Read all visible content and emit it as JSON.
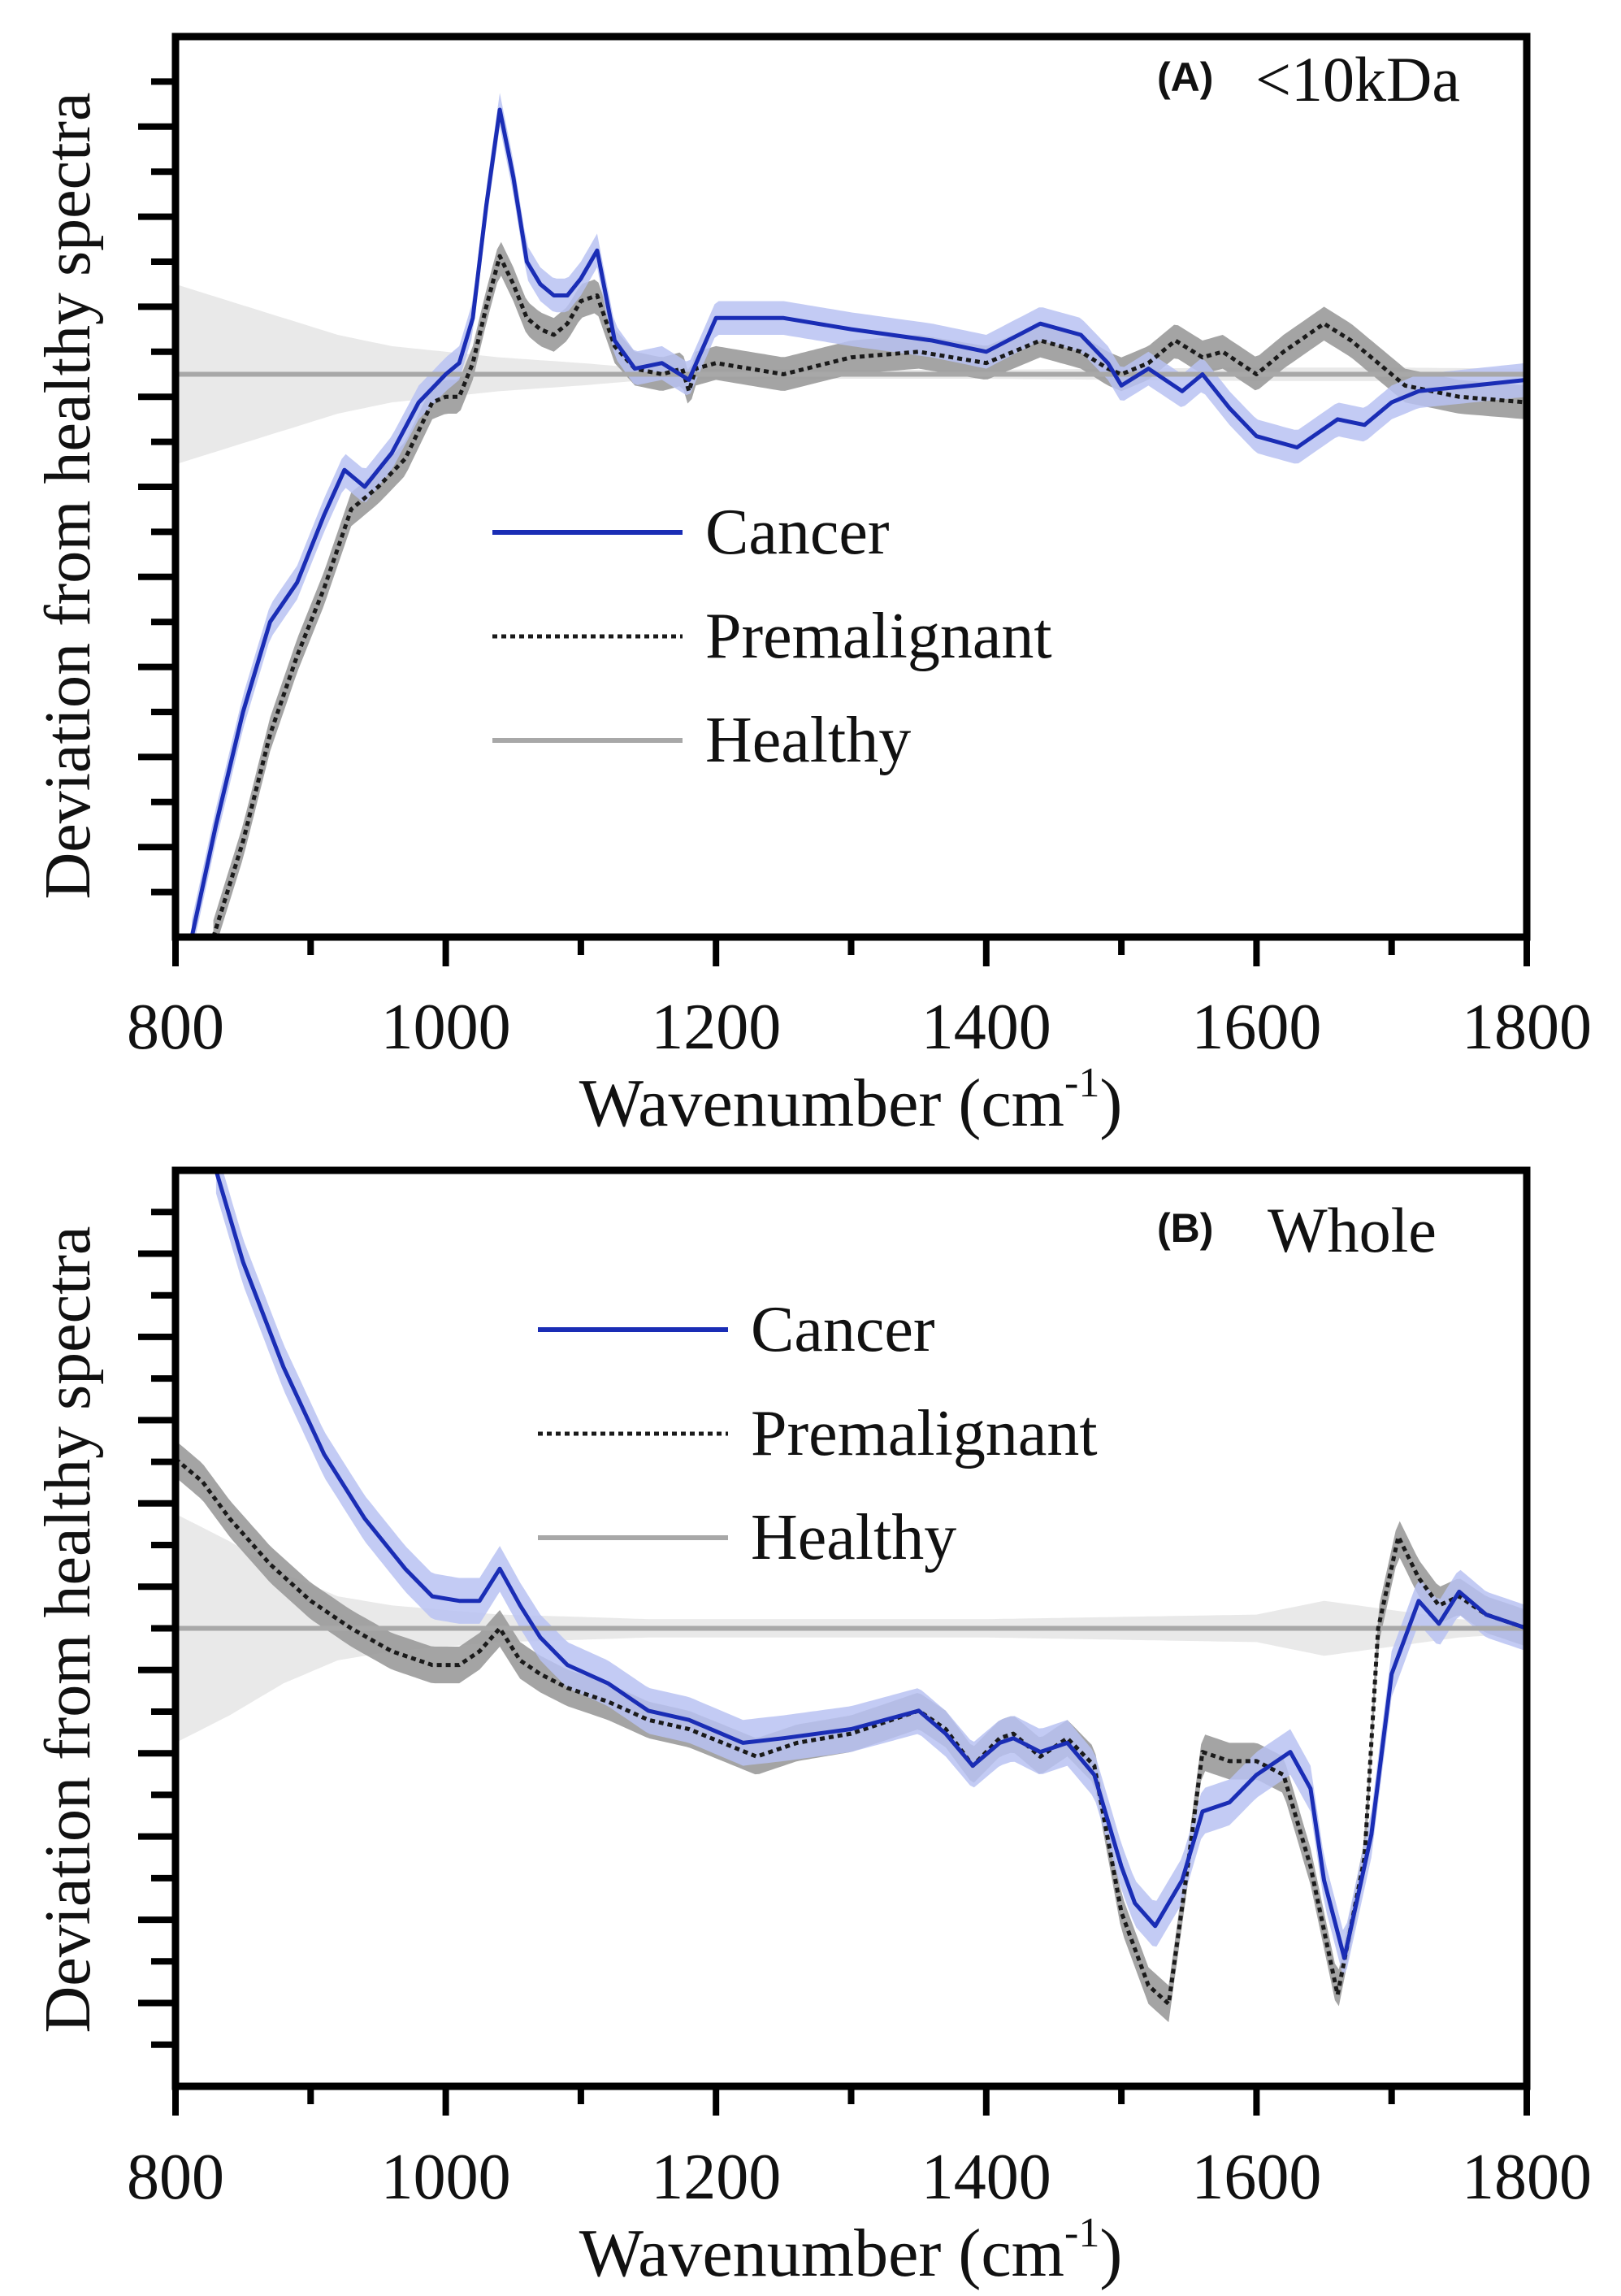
{
  "colors": {
    "cancer": "#1a2db5",
    "cancer_band": "#b8c2f2",
    "premalignant": "#1a1a1a",
    "premalignant_band": "#9a9a9a",
    "healthy": "#a8a8a8",
    "healthy_band": "#e9e9e9",
    "axis": "#000000"
  },
  "chart_data": [
    {
      "type": "line",
      "panel_letter": "(A)",
      "panel_title": "<10kDa",
      "xlabel": "Wavenumber (cm",
      "xlabel_sup": "-1",
      "xlabel_close": ")",
      "ylabel": "Deviation from healthy spectra",
      "xlim": [
        800,
        1800
      ],
      "ylim": [
        -1.0,
        0.6
      ],
      "x_ticks": [
        800,
        1000,
        1200,
        1400,
        1600,
        1800
      ],
      "x_tick_labels": [
        "800",
        "1000",
        "1200",
        "1400",
        "1600",
        "1800"
      ],
      "grid": false,
      "legend": {
        "position": "center-left",
        "entries": [
          {
            "label": "Cancer",
            "series": "cancer",
            "style": "solid"
          },
          {
            "label": "Premalignant",
            "series": "premalignant",
            "style": "dotted"
          },
          {
            "label": "Healthy",
            "series": "healthy",
            "style": "solid"
          }
        ]
      },
      "series": [
        {
          "key": "cancer",
          "name": "Cancer",
          "x": [
            812,
            830,
            850,
            870,
            890,
            910,
            925,
            940,
            960,
            980,
            1000,
            1010,
            1020,
            1030,
            1040,
            1050,
            1060,
            1070,
            1080,
            1090,
            1100,
            1112,
            1125,
            1140,
            1160,
            1180,
            1200,
            1250,
            1300,
            1360,
            1400,
            1440,
            1470,
            1490,
            1500,
            1520,
            1545,
            1560,
            1580,
            1600,
            1630,
            1660,
            1680,
            1700,
            1720,
            1760,
            1800
          ],
          "y": [
            -1.0,
            -0.8,
            -0.6,
            -0.44,
            -0.37,
            -0.25,
            -0.17,
            -0.2,
            -0.14,
            -0.05,
            0.0,
            0.02,
            0.1,
            0.3,
            0.47,
            0.35,
            0.2,
            0.16,
            0.14,
            0.14,
            0.17,
            0.22,
            0.06,
            0.01,
            0.02,
            -0.01,
            0.1,
            0.1,
            0.08,
            0.06,
            0.04,
            0.09,
            0.07,
            0.02,
            -0.02,
            0.01,
            -0.03,
            0.0,
            -0.06,
            -0.11,
            -0.13,
            -0.08,
            -0.09,
            -0.05,
            -0.03,
            -0.02,
            -0.01
          ],
          "band": 0.03
        },
        {
          "key": "premalignant",
          "name": "Premalignant",
          "x": [
            828,
            850,
            870,
            890,
            910,
            930,
            950,
            970,
            990,
            1000,
            1010,
            1020,
            1030,
            1040,
            1050,
            1060,
            1070,
            1080,
            1090,
            1100,
            1112,
            1125,
            1140,
            1160,
            1175,
            1180,
            1185,
            1200,
            1250,
            1300,
            1350,
            1400,
            1440,
            1470,
            1490,
            1500,
            1520,
            1540,
            1560,
            1575,
            1600,
            1620,
            1650,
            1670,
            1690,
            1710,
            1750,
            1800
          ],
          "y": [
            -1.0,
            -0.83,
            -0.64,
            -0.5,
            -0.38,
            -0.24,
            -0.2,
            -0.15,
            -0.05,
            -0.04,
            -0.04,
            0.02,
            0.12,
            0.21,
            0.16,
            0.1,
            0.08,
            0.07,
            0.09,
            0.13,
            0.14,
            0.05,
            0.01,
            0.0,
            0.01,
            -0.03,
            0.01,
            0.02,
            0.0,
            0.03,
            0.04,
            0.02,
            0.06,
            0.04,
            0.01,
            0.0,
            0.02,
            0.06,
            0.03,
            0.04,
            0.0,
            0.04,
            0.09,
            0.06,
            0.02,
            -0.02,
            -0.04,
            -0.05
          ],
          "band": 0.03
        },
        {
          "key": "healthy",
          "name": "Healthy",
          "x": [
            800,
            1800
          ],
          "y": [
            0,
            0
          ],
          "band_x": [
            800,
            840,
            880,
            920,
            960,
            1000,
            1040,
            1100,
            1150,
            1200,
            1300,
            1400,
            1500,
            1600,
            1700,
            1800
          ],
          "band_y": [
            0.16,
            0.13,
            0.1,
            0.07,
            0.05,
            0.04,
            0.03,
            0.02,
            0.01,
            0.01,
            0.008,
            0.008,
            0.01,
            0.012,
            0.012,
            0.01
          ]
        }
      ]
    },
    {
      "type": "line",
      "panel_letter": "(B)",
      "panel_title": "Whole",
      "xlabel": "Wavenumber (cm",
      "xlabel_sup": "-1",
      "xlabel_close": ")",
      "ylabel": "Deviation from healthy spectra",
      "xlim": [
        800,
        1800
      ],
      "ylim": [
        -1.0,
        1.0
      ],
      "x_ticks": [
        800,
        1000,
        1200,
        1400,
        1600,
        1800
      ],
      "x_tick_labels": [
        "800",
        "1000",
        "1200",
        "1400",
        "1600",
        "1800"
      ],
      "grid": false,
      "legend": {
        "position": "top-center",
        "entries": [
          {
            "label": "Cancer",
            "series": "cancer",
            "style": "solid"
          },
          {
            "label": "Premalignant",
            "series": "premalignant",
            "style": "dotted"
          },
          {
            "label": "Healthy",
            "series": "healthy",
            "style": "solid"
          }
        ]
      },
      "series": [
        {
          "key": "cancer",
          "name": "Cancer",
          "x": [
            830,
            850,
            880,
            910,
            940,
            970,
            990,
            1010,
            1025,
            1040,
            1055,
            1070,
            1090,
            1120,
            1150,
            1180,
            1220,
            1250,
            1300,
            1350,
            1370,
            1390,
            1410,
            1420,
            1440,
            1460,
            1480,
            1500,
            1510,
            1525,
            1545,
            1560,
            1580,
            1600,
            1625,
            1640,
            1650,
            1665,
            1685,
            1700,
            1720,
            1735,
            1750,
            1770,
            1800
          ],
          "y": [
            1.0,
            0.8,
            0.57,
            0.38,
            0.24,
            0.13,
            0.07,
            0.06,
            0.06,
            0.13,
            0.05,
            -0.02,
            -0.08,
            -0.12,
            -0.18,
            -0.2,
            -0.25,
            -0.24,
            -0.22,
            -0.18,
            -0.23,
            -0.3,
            -0.25,
            -0.24,
            -0.27,
            -0.25,
            -0.32,
            -0.52,
            -0.6,
            -0.65,
            -0.55,
            -0.4,
            -0.38,
            -0.32,
            -0.27,
            -0.35,
            -0.55,
            -0.72,
            -0.45,
            -0.1,
            0.06,
            0.01,
            0.08,
            0.03,
            0.0
          ],
          "band": 0.05
        },
        {
          "key": "premalignant",
          "name": "Premalignant",
          "x": [
            800,
            820,
            840,
            870,
            900,
            930,
            960,
            990,
            1010,
            1025,
            1040,
            1055,
            1070,
            1090,
            1120,
            1150,
            1180,
            1230,
            1260,
            1300,
            1350,
            1370,
            1390,
            1410,
            1420,
            1440,
            1460,
            1480,
            1500,
            1520,
            1535,
            1550,
            1560,
            1580,
            1600,
            1620,
            1640,
            1660,
            1680,
            1690,
            1705,
            1720,
            1735,
            1750,
            1770,
            1800
          ],
          "y": [
            0.37,
            0.32,
            0.24,
            0.14,
            0.06,
            0.0,
            -0.05,
            -0.08,
            -0.08,
            -0.05,
            0.0,
            -0.07,
            -0.1,
            -0.13,
            -0.16,
            -0.2,
            -0.22,
            -0.28,
            -0.25,
            -0.23,
            -0.18,
            -0.22,
            -0.3,
            -0.24,
            -0.23,
            -0.28,
            -0.24,
            -0.3,
            -0.62,
            -0.78,
            -0.82,
            -0.5,
            -0.27,
            -0.29,
            -0.29,
            -0.32,
            -0.52,
            -0.8,
            -0.5,
            0.0,
            0.2,
            0.11,
            0.05,
            0.07,
            0.03,
            0.0
          ],
          "band": 0.04
        },
        {
          "key": "healthy",
          "name": "Healthy",
          "x": [
            800,
            1800
          ],
          "y": [
            0,
            0
          ],
          "band_x": [
            800,
            840,
            880,
            920,
            960,
            1000,
            1040,
            1100,
            1150,
            1200,
            1300,
            1400,
            1500,
            1600,
            1650,
            1700,
            1750,
            1800
          ],
          "band_y": [
            0.25,
            0.19,
            0.12,
            0.07,
            0.05,
            0.04,
            0.03,
            0.025,
            0.02,
            0.02,
            0.02,
            0.02,
            0.025,
            0.03,
            0.06,
            0.04,
            0.02,
            0.01
          ]
        }
      ]
    }
  ]
}
